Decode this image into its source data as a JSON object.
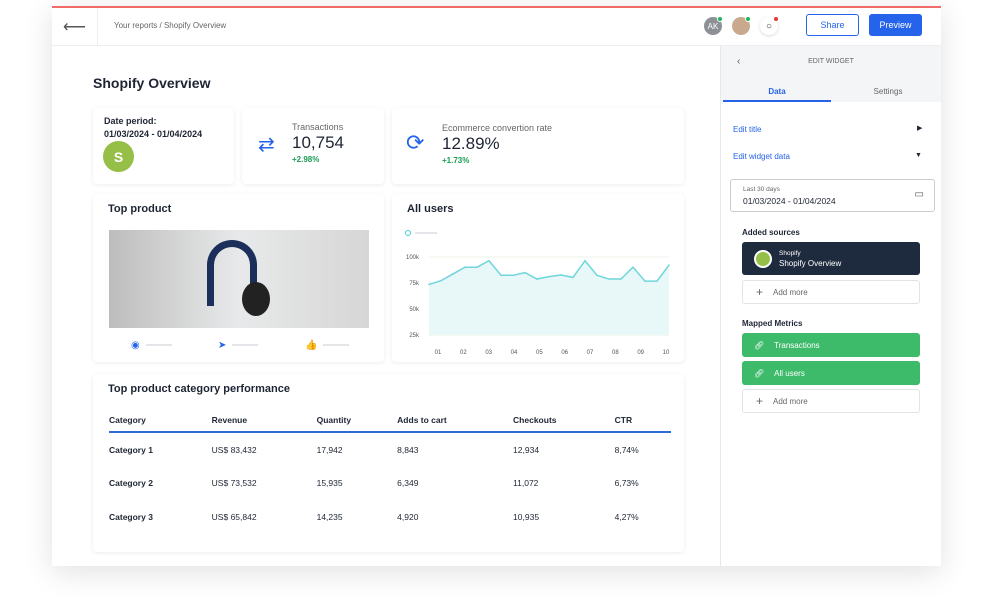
{
  "header": {
    "breadcrumb": "Your reports / Shopify Overview",
    "avatar_initials": "AK",
    "share_label": "Share",
    "preview_label": "Preview"
  },
  "page": {
    "title": "Shopify Overview"
  },
  "date_card": {
    "label": "Date period:",
    "value": "01/03/2024 - 01/04/2024"
  },
  "transactions": {
    "label": "Transactions",
    "value": "10,754",
    "change": "+2.98%"
  },
  "conversion": {
    "label": "Ecommerce convertion rate",
    "value": "12.89%",
    "change": "+1.73%"
  },
  "top_product": {
    "title": "Top product"
  },
  "all_users": {
    "title": "All users"
  },
  "chart_data": {
    "type": "area",
    "title": "All users",
    "x_ticks": [
      "01",
      "02",
      "03",
      "04",
      "05",
      "06",
      "07",
      "08",
      "09",
      "10"
    ],
    "y_ticks": [
      "100k",
      "75k",
      "50k",
      "25k"
    ],
    "ylim": [
      25000,
      100000
    ],
    "grid": true,
    "color": "#6fd6db",
    "values": [
      73600,
      77200,
      83700,
      90200,
      90200,
      96400,
      82400,
      82400,
      85000,
      78800,
      81100,
      82700,
      80400,
      96400,
      82400,
      78800,
      78800,
      90200,
      76800,
      76800,
      92200
    ]
  },
  "table": {
    "title": "Top product category performance",
    "columns": [
      "Category",
      "Revenue",
      "Quantity",
      "Adds to cart",
      "Checkouts",
      "CTR"
    ],
    "rows": [
      [
        "Category 1",
        "US$ 83,432",
        "17,942",
        "8,843",
        "12,934",
        "8,74%"
      ],
      [
        "Category 2",
        "US$ 73,532",
        "15,935",
        "6,349",
        "11,072",
        "6,73%"
      ],
      [
        "Category 3",
        "US$ 65,842",
        "14,235",
        "4,920",
        "10,935",
        "4,27%"
      ]
    ]
  },
  "panel": {
    "title": "EDIT WIDGET",
    "tabs": [
      "Data",
      "Settings"
    ],
    "edit_title": "Edit title",
    "edit_data": "Edit widget data",
    "range_label": "Last 30 days",
    "range_value": "01/03/2024 - 01/04/2024",
    "sources_label": "Added sources",
    "source_type": "Shopify",
    "source_name": "Shopify Overview",
    "add_more": "Add more",
    "metrics_label": "Mapped Metrics",
    "metrics": [
      "Transactions",
      "All users"
    ]
  }
}
